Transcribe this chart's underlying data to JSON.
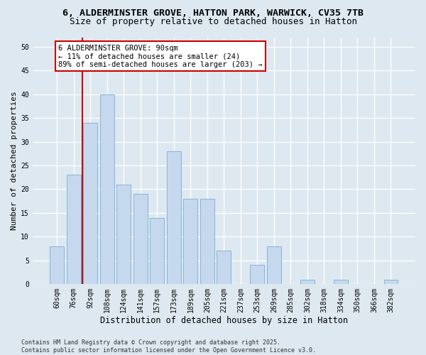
{
  "title_line1": "6, ALDERMINSTER GROVE, HATTON PARK, WARWICK, CV35 7TB",
  "title_line2": "Size of property relative to detached houses in Hatton",
  "xlabel": "Distribution of detached houses by size in Hatton",
  "ylabel": "Number of detached properties",
  "categories": [
    "60sqm",
    "76sqm",
    "92sqm",
    "108sqm",
    "124sqm",
    "141sqm",
    "157sqm",
    "173sqm",
    "189sqm",
    "205sqm",
    "221sqm",
    "237sqm",
    "253sqm",
    "269sqm",
    "285sqm",
    "302sqm",
    "318sqm",
    "334sqm",
    "350sqm",
    "366sqm",
    "382sqm"
  ],
  "values": [
    8,
    23,
    34,
    40,
    21,
    19,
    14,
    28,
    18,
    18,
    7,
    0,
    4,
    8,
    0,
    1,
    0,
    1,
    0,
    0,
    1
  ],
  "bar_color": "#c5d8ed",
  "bar_edgecolor": "#7bafd4",
  "background_color": "#dde8f0",
  "grid_color": "#ffffff",
  "vline_x_index": 1.5,
  "vline_color": "#cc0000",
  "annotation_line1": "6 ALDERMINSTER GROVE: 90sqm",
  "annotation_line2": "← 11% of detached houses are smaller (24)",
  "annotation_line3": "89% of semi-detached houses are larger (203) →",
  "annotation_box_facecolor": "#ffffff",
  "annotation_box_edgecolor": "#cc0000",
  "ylim": [
    0,
    52
  ],
  "yticks": [
    0,
    5,
    10,
    15,
    20,
    25,
    30,
    35,
    40,
    45,
    50
  ],
  "footer_text": "Contains HM Land Registry data © Crown copyright and database right 2025.\nContains public sector information licensed under the Open Government Licence v3.0.",
  "title_fontsize": 9.5,
  "subtitle_fontsize": 9,
  "xlabel_fontsize": 8.5,
  "ylabel_fontsize": 8,
  "tick_fontsize": 7,
  "annotation_fontsize": 7.5,
  "footer_fontsize": 6
}
